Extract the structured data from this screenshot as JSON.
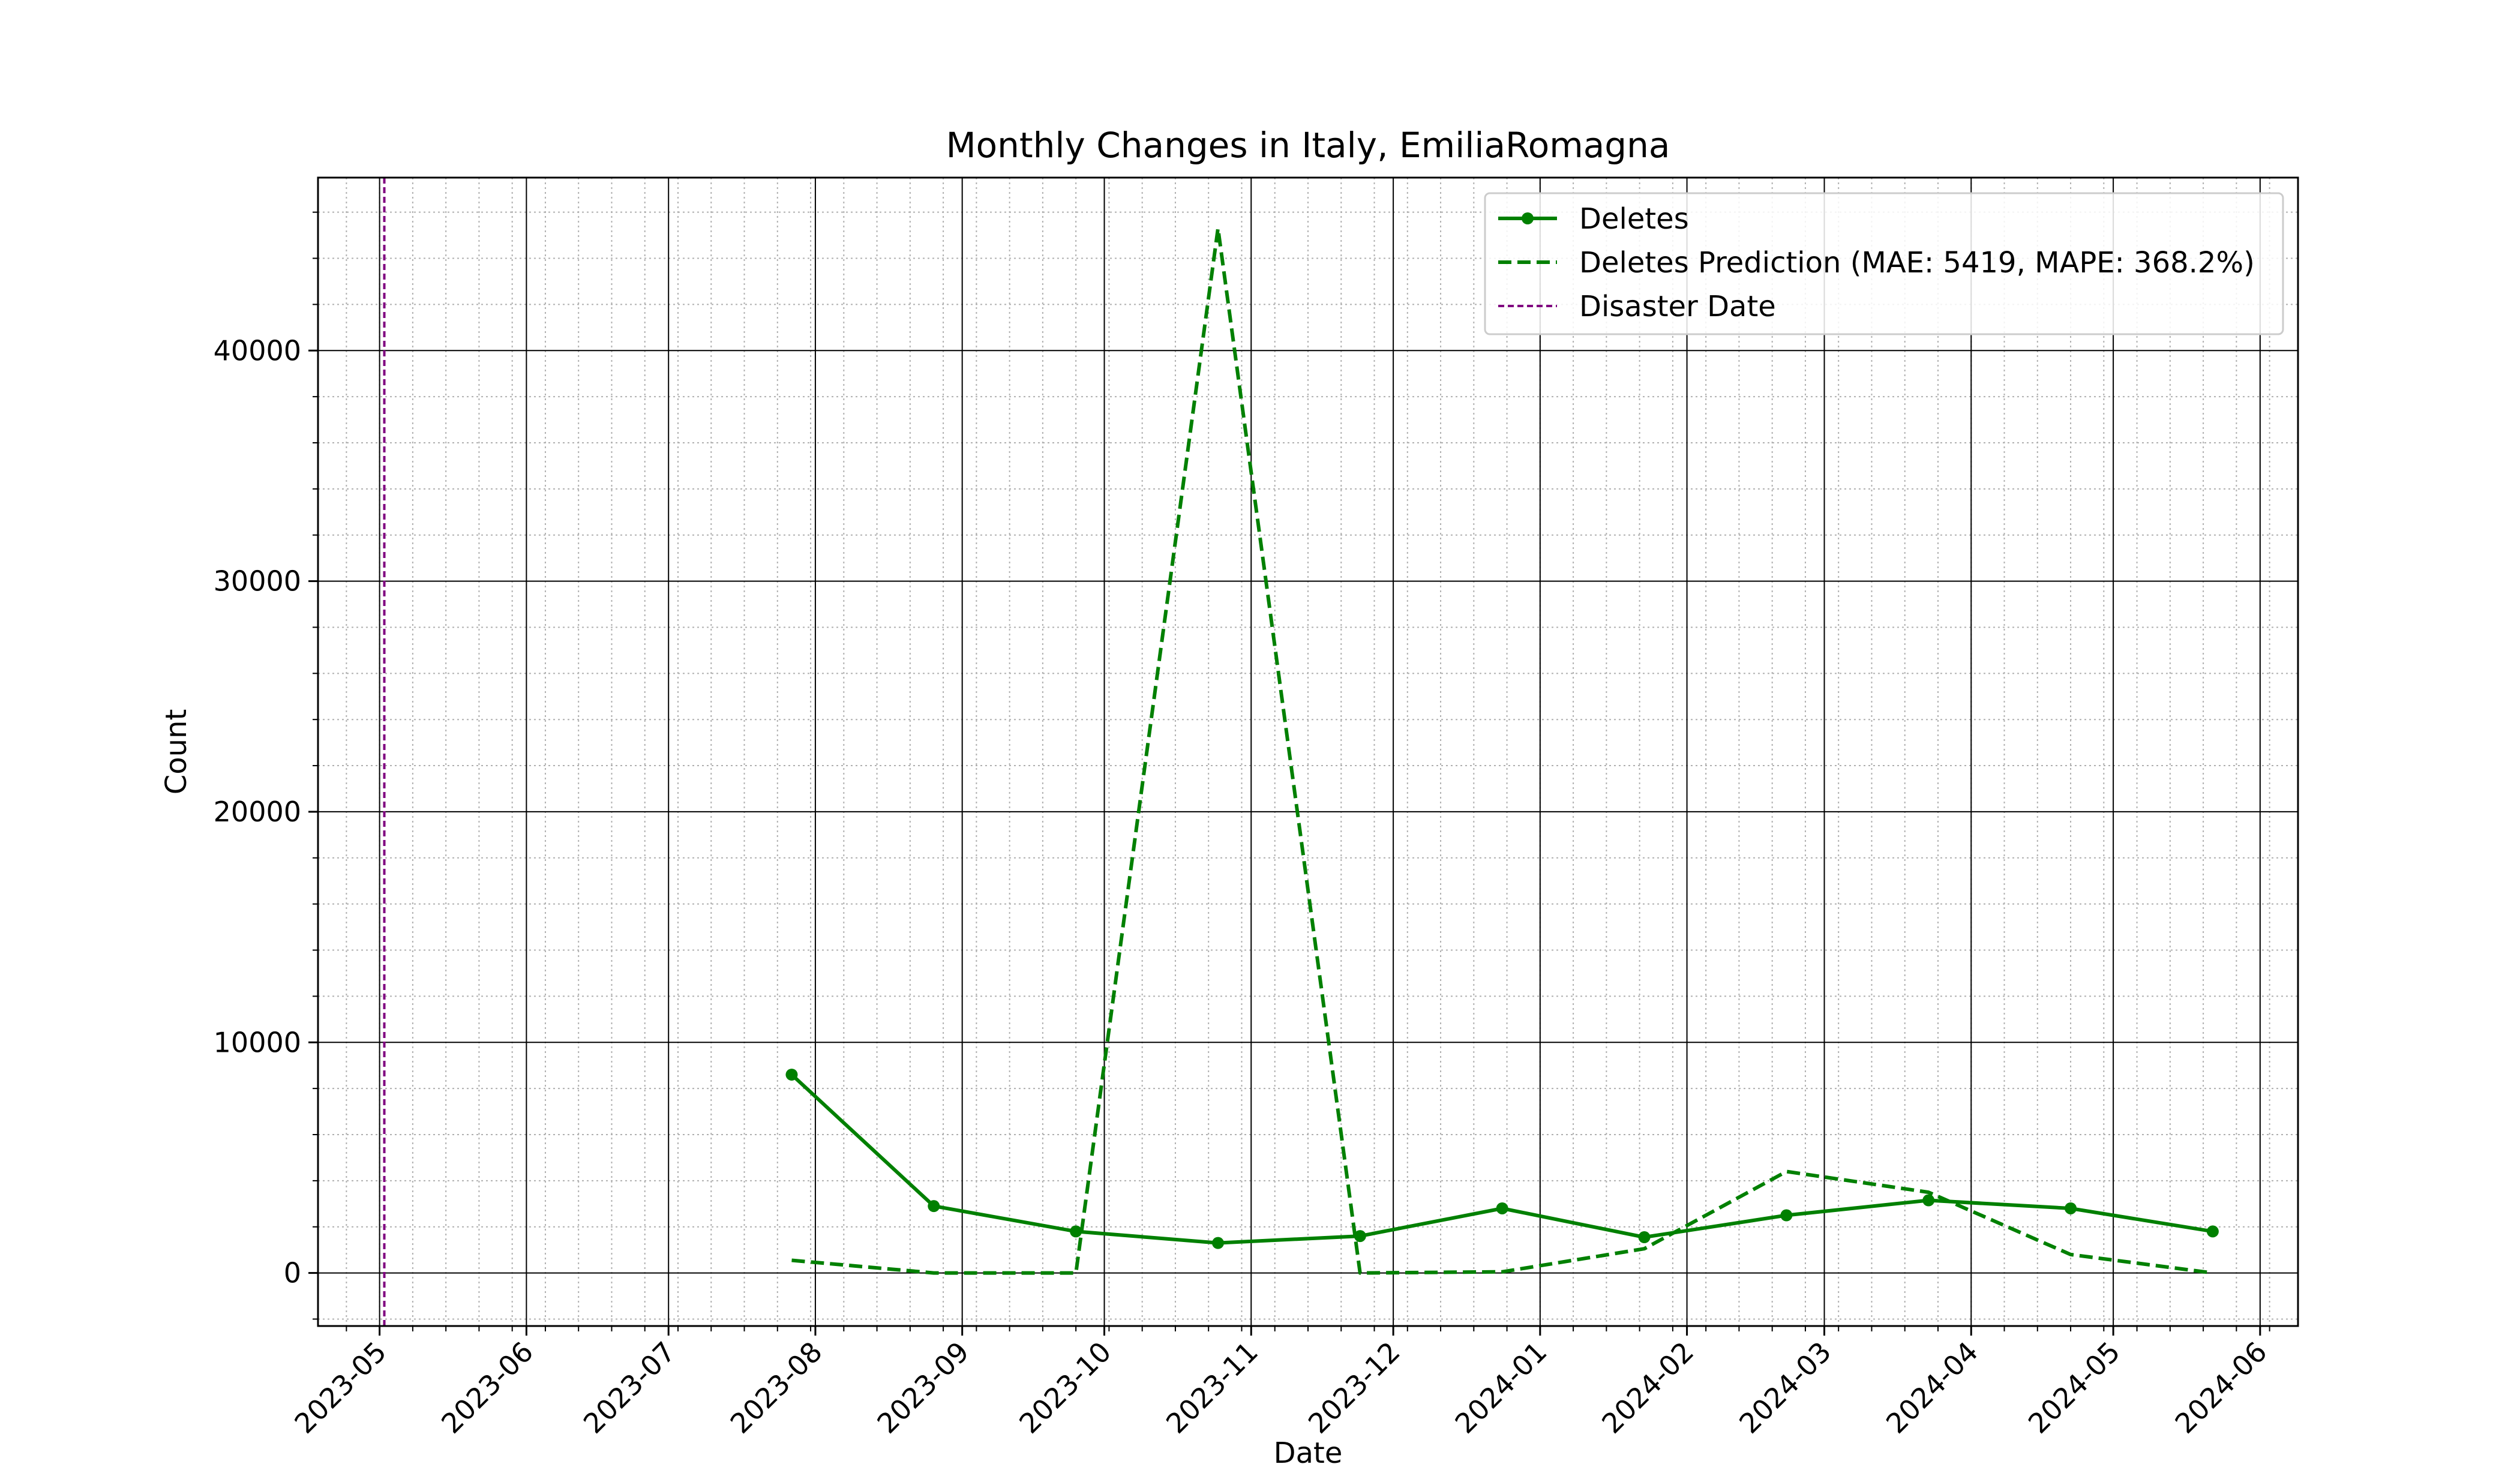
{
  "chart_data": {
    "type": "line",
    "title": "Monthly Changes in Italy, EmiliaRomagna",
    "xlabel": "Date",
    "ylabel": "Count",
    "x_axis_type": "date",
    "xlim": [
      "2023-04-18",
      "2024-06-09"
    ],
    "ylim": [
      -2300,
      47500
    ],
    "x_ticks": [
      "2023-05-01",
      "2023-06-01",
      "2023-07-01",
      "2023-08-01",
      "2023-09-01",
      "2023-10-01",
      "2023-11-01",
      "2023-12-01",
      "2024-01-01",
      "2024-02-01",
      "2024-03-01",
      "2024-04-01",
      "2024-05-01",
      "2024-06-01"
    ],
    "x_tick_labels": [
      "2023-05",
      "2023-06",
      "2023-07",
      "2023-08",
      "2023-09",
      "2023-10",
      "2023-11",
      "2023-12",
      "2024-01",
      "2024-02",
      "2024-03",
      "2024-04",
      "2024-05",
      "2024-06"
    ],
    "y_ticks": [
      0,
      10000,
      20000,
      30000,
      40000
    ],
    "y_tick_labels": [
      "0",
      "10000",
      "20000",
      "30000",
      "40000"
    ],
    "grid": "major solid and minor dotted",
    "legend_position": "top-right",
    "x": [
      "2023-07-27",
      "2023-08-26",
      "2023-09-25",
      "2023-10-25",
      "2023-11-24",
      "2023-12-24",
      "2024-01-23",
      "2024-02-22",
      "2024-03-23",
      "2024-04-22",
      "2024-05-22"
    ],
    "series": [
      {
        "name": "Deletes",
        "style": "solid-markers",
        "color": "#008000",
        "values": [
          8600,
          2900,
          1800,
          1300,
          1600,
          2800,
          1550,
          2500,
          3150,
          2800,
          1800
        ]
      },
      {
        "name": "Deletes Prediction (MAE: 5419, MAPE: 368.2%)",
        "style": "dashed",
        "color": "#008000",
        "values": [
          550,
          0,
          0,
          45300,
          0,
          50,
          1050,
          4400,
          3500,
          800,
          0
        ]
      }
    ],
    "vlines": [
      {
        "name": "Disaster Date",
        "date": "2023-05-02",
        "style": "dashed",
        "color": "#800080"
      }
    ]
  }
}
